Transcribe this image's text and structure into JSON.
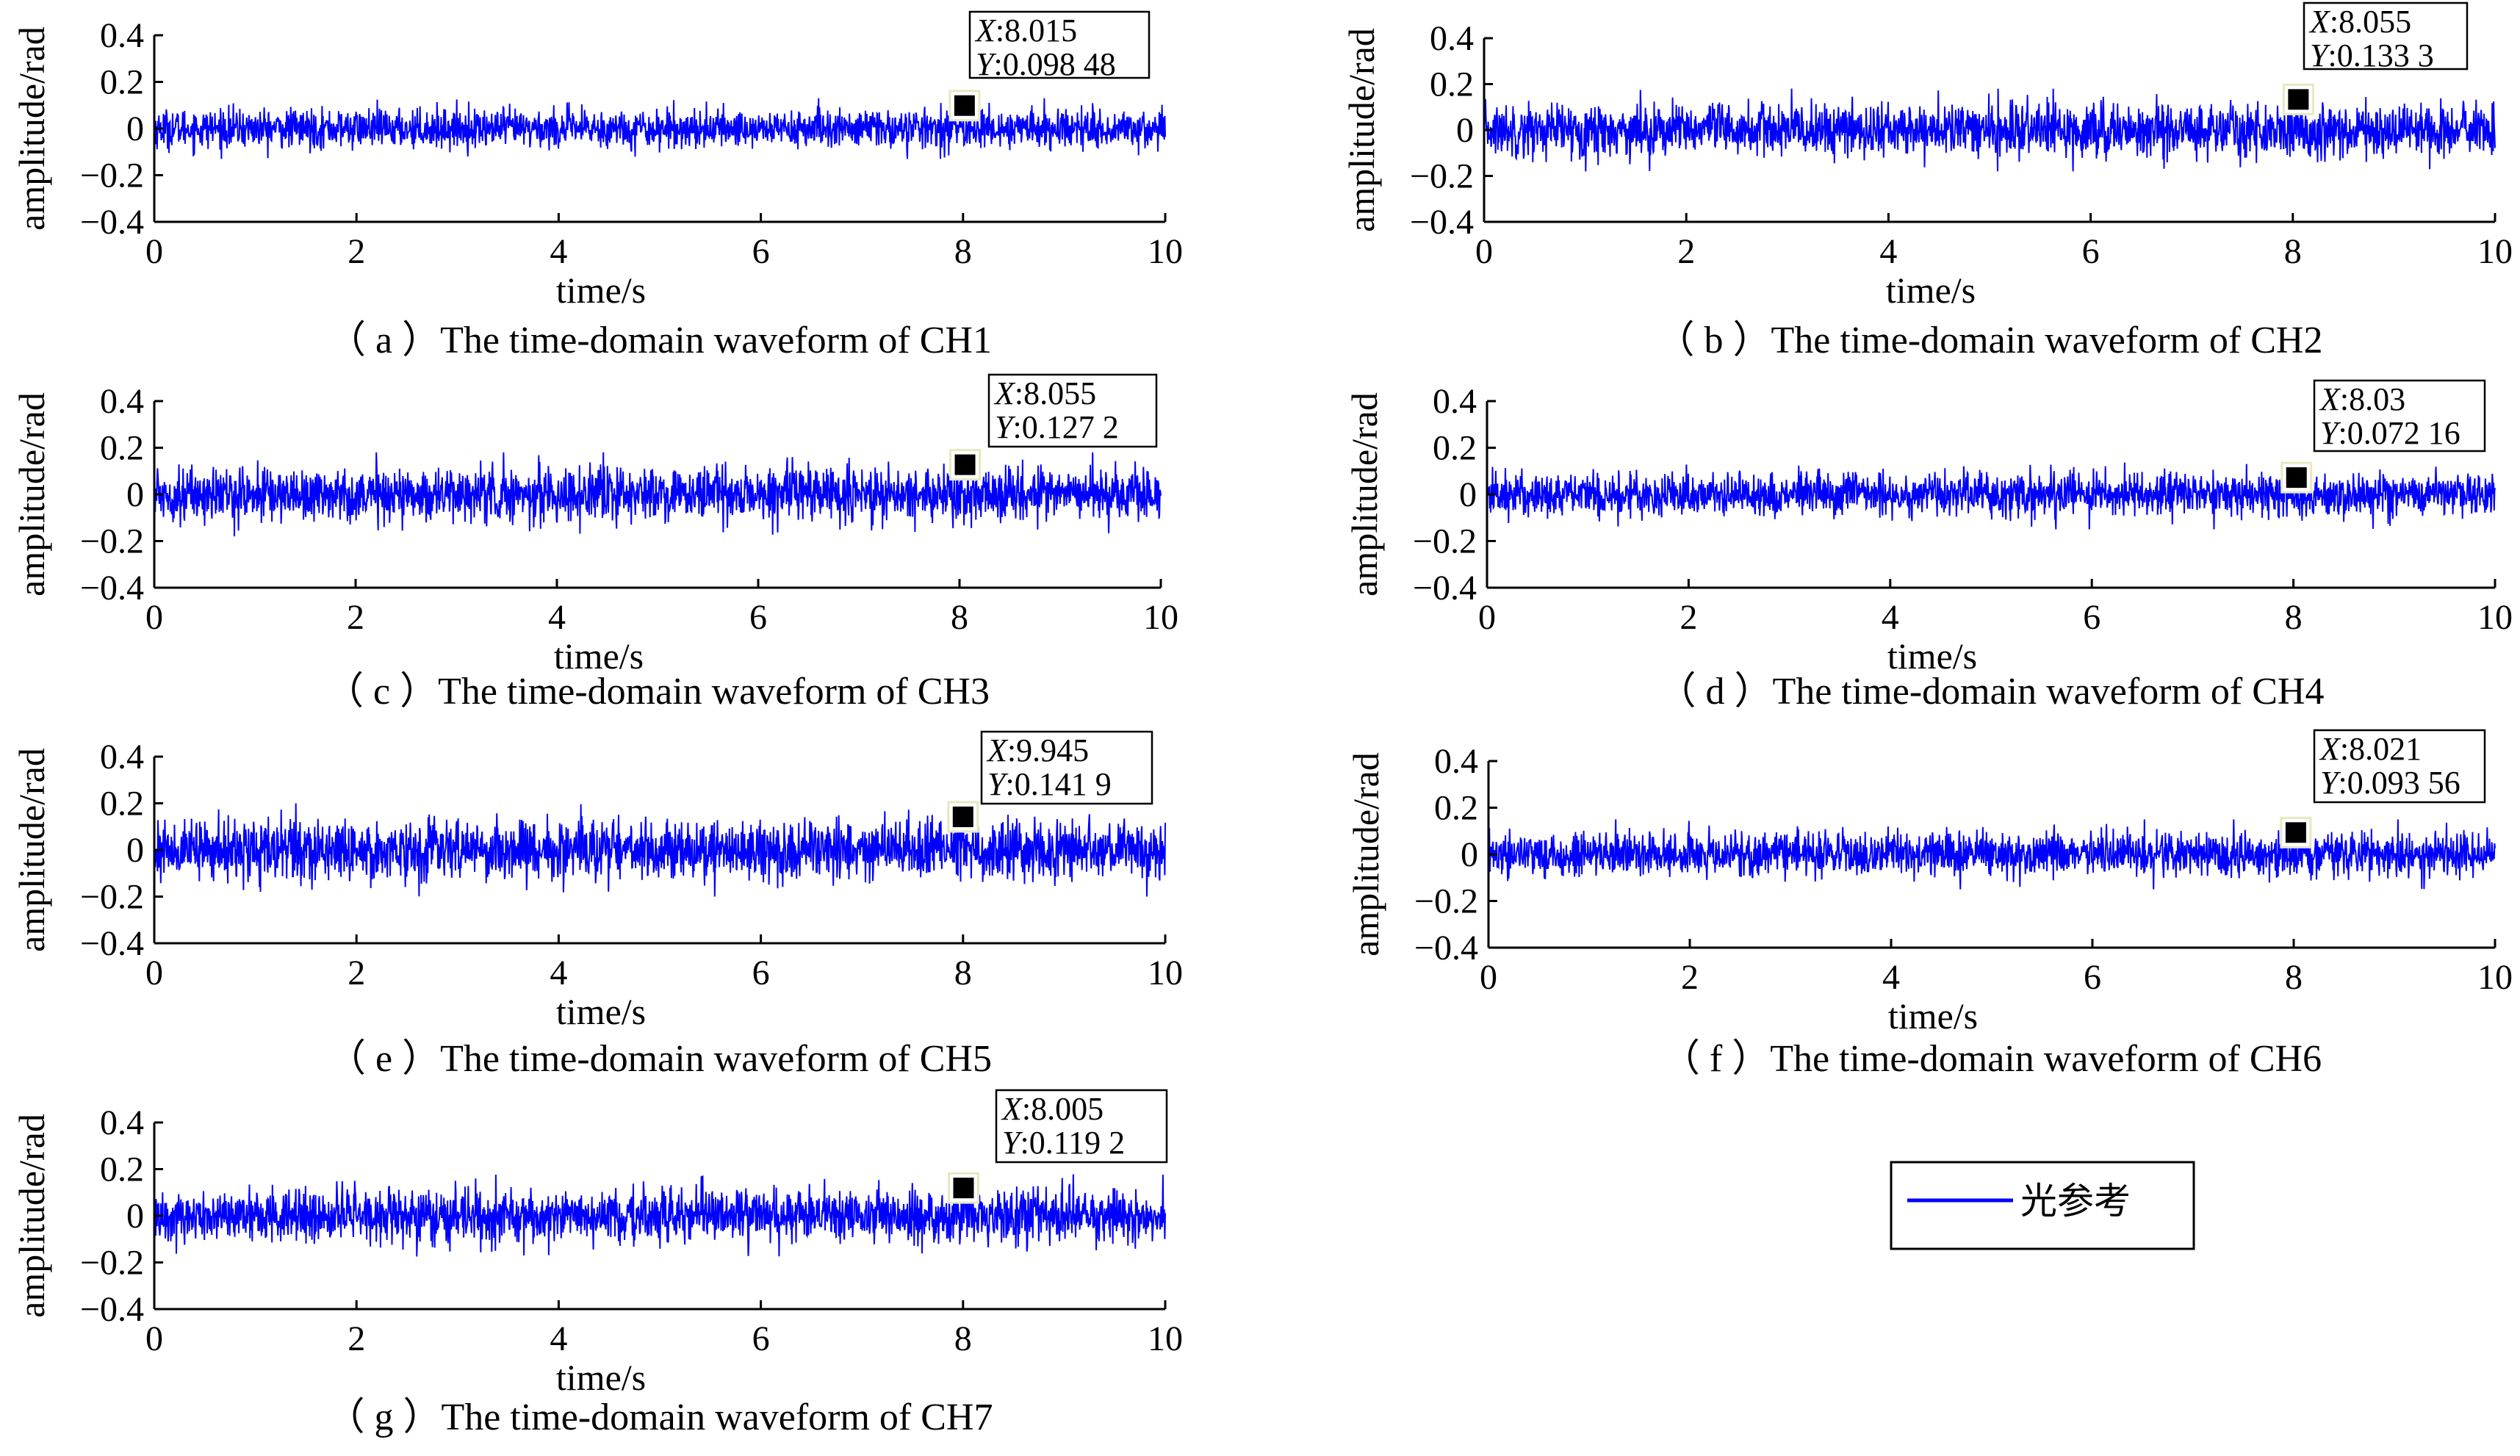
{
  "figure": {
    "legend": {
      "label": "光参考",
      "color": "#0000ff"
    }
  },
  "chart_data": [
    {
      "type": "line",
      "panel": "a",
      "caption": "（ a ）The time-domain waveform of  CH1",
      "xlabel": "time/s",
      "ylabel": "amplitude/rad",
      "xlim": [
        0,
        10
      ],
      "ylim": [
        -0.4,
        0.4
      ],
      "xticks": [
        "0",
        "2",
        "4",
        "6",
        "8",
        "10"
      ],
      "yticks": [
        "0.4",
        "0.2",
        "0",
        "−0.2",
        "−0.4"
      ],
      "series": [
        {
          "color": "#0000ff",
          "amplitude_range": [
            -0.13,
            0.13
          ]
        }
      ],
      "datatip": {
        "x_value": 8.015,
        "y_value": 0.09848,
        "x_text": "8.015",
        "y_text": "0.098 48",
        "x_prefix": "X",
        "y_prefix": "Y"
      }
    },
    {
      "type": "line",
      "panel": "b",
      "caption": "（ b ）The time-domain waveform of  CH2",
      "xlabel": "time/s",
      "ylabel": "amplitude/rad",
      "xlim": [
        0,
        10
      ],
      "ylim": [
        -0.4,
        0.4
      ],
      "xticks": [
        "0",
        "2",
        "4",
        "6",
        "8",
        "10"
      ],
      "yticks": [
        "0.4",
        "0.2",
        "0",
        "−0.2",
        "−0.4"
      ],
      "series": [
        {
          "color": "#0000ff",
          "amplitude_range": [
            -0.18,
            0.18
          ]
        }
      ],
      "datatip": {
        "x_value": 8.055,
        "y_value": 0.1333,
        "x_text": "8.055",
        "y_text": "0.133 3",
        "x_prefix": "X",
        "y_prefix": "Y"
      }
    },
    {
      "type": "line",
      "panel": "c",
      "caption": "（ c ）The time-domain waveform of  CH3",
      "xlabel": "time/s",
      "ylabel": "amplitude/rad",
      "xlim": [
        0,
        10
      ],
      "ylim": [
        -0.4,
        0.4
      ],
      "xticks": [
        "0",
        "2",
        "4",
        "6",
        "8",
        "10"
      ],
      "yticks": [
        "0.4",
        "0.2",
        "0",
        "−0.2",
        "−0.4"
      ],
      "series": [
        {
          "color": "#0000ff",
          "amplitude_range": [
            -0.18,
            0.18
          ]
        }
      ],
      "datatip": {
        "x_value": 8.055,
        "y_value": 0.1272,
        "x_text": "8.055",
        "y_text": "0.127 2",
        "x_prefix": "X",
        "y_prefix": "Y"
      }
    },
    {
      "type": "line",
      "panel": "d",
      "caption": "（ d ）The time-domain waveform of  CH4",
      "xlabel": "time/s",
      "ylabel": "amplitude/rad",
      "xlim": [
        0,
        10
      ],
      "ylim": [
        -0.4,
        0.4
      ],
      "xticks": [
        "0",
        "2",
        "4",
        "6",
        "8",
        "10"
      ],
      "yticks": [
        "0.4",
        "0.2",
        "0",
        "−0.2",
        "−0.4"
      ],
      "series": [
        {
          "color": "#0000ff",
          "amplitude_range": [
            -0.15,
            0.15
          ]
        }
      ],
      "datatip": {
        "x_value": 8.03,
        "y_value": 0.07216,
        "x_text": "8.03",
        "y_text": "0.072 16",
        "x_prefix": "X",
        "y_prefix": "Y"
      }
    },
    {
      "type": "line",
      "panel": "e",
      "caption": "（ e ）The time-domain waveform of  CH5",
      "xlabel": "time/s",
      "ylabel": "amplitude/rad",
      "xlim": [
        0,
        10
      ],
      "ylim": [
        -0.4,
        0.4
      ],
      "xticks": [
        "0",
        "2",
        "4",
        "6",
        "8",
        "10"
      ],
      "yticks": [
        "0.4",
        "0.2",
        "0",
        "−0.2",
        "−0.4"
      ],
      "series": [
        {
          "color": "#0000ff",
          "amplitude_range": [
            -0.2,
            0.2
          ]
        }
      ],
      "datatip": {
        "x_value": 9.945,
        "y_value": 0.1419,
        "x_text": "9.945",
        "y_text": "0.141 9",
        "x_prefix": "X",
        "y_prefix": "Y"
      }
    },
    {
      "type": "line",
      "panel": "f",
      "caption": "（ f ）The time-domain waveform of  CH6",
      "xlabel": "time/s",
      "ylabel": "amplitude/rad",
      "xlim": [
        0,
        10
      ],
      "ylim": [
        -0.4,
        0.4
      ],
      "xticks": [
        "0",
        "2",
        "4",
        "6",
        "8",
        "10"
      ],
      "yticks": [
        "0.4",
        "0.2",
        "0",
        "−0.2",
        "−0.4"
      ],
      "series": [
        {
          "color": "#0000ff",
          "amplitude_range": [
            -0.15,
            0.15
          ]
        }
      ],
      "datatip": {
        "x_value": 8.021,
        "y_value": 0.09356,
        "x_text": "8.021",
        "y_text": "0.093 56",
        "x_prefix": "X",
        "y_prefix": "Y"
      }
    },
    {
      "type": "line",
      "panel": "g",
      "caption": "（ g ）The time-domain waveform of  CH7",
      "xlabel": "time/s",
      "ylabel": "amplitude/rad",
      "xlim": [
        0,
        10
      ],
      "ylim": [
        -0.4,
        0.4
      ],
      "xticks": [
        "0",
        "2",
        "4",
        "6",
        "8",
        "10"
      ],
      "yticks": [
        "0.4",
        "0.2",
        "0",
        "−0.2",
        "−0.4"
      ],
      "series": [
        {
          "color": "#0000ff",
          "amplitude_range": [
            -0.18,
            0.18
          ]
        }
      ],
      "datatip": {
        "x_value": 8.005,
        "y_value": 0.1192,
        "x_text": "8.005",
        "y_text": "0.119 2",
        "x_prefix": "X",
        "y_prefix": "Y"
      }
    }
  ]
}
